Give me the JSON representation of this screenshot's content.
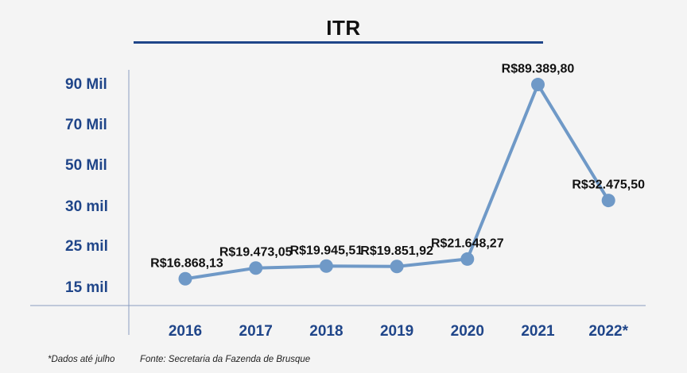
{
  "chart_data": {
    "type": "line",
    "title": "ITR",
    "categories": [
      "2016",
      "2017",
      "2018",
      "2019",
      "2020",
      "2021",
      "2022*"
    ],
    "series": [
      {
        "values": [
          16868.13,
          19473.05,
          19945.51,
          19851.92,
          21648.27,
          89389.8,
          32475.5
        ],
        "labels": [
          "R$16.868,13",
          "R$19.473,05",
          "R$19.945,51",
          "R$19.851,92",
          "R$21.648,27",
          "R$89.389,80",
          "R$32.475,50"
        ]
      }
    ],
    "y_ticks": [
      15000,
      25000,
      30000,
      50000,
      70000,
      90000
    ],
    "y_tick_labels": [
      "15 mil",
      "25 mil",
      "30 mil",
      "50 Mil",
      "70 Mil",
      "90 Mil"
    ],
    "grid": false,
    "line_color": "#6f99c7",
    "axis_label_color": "#1f4589"
  },
  "footnote": "*Dados até julho",
  "source": "Fonte: Secretaria da Fazenda de Brusque"
}
